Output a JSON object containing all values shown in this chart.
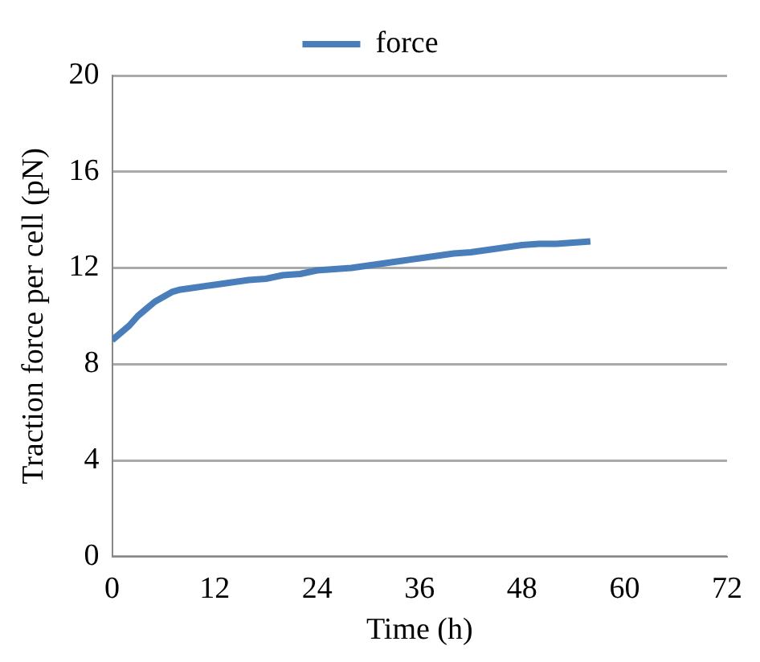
{
  "chart_data": {
    "type": "line",
    "xlabel": "Time (h)",
    "ylabel": "Traction force per cell (pN)",
    "x": [
      0,
      1,
      2,
      3,
      4,
      5,
      6,
      7,
      8,
      10,
      12,
      14,
      16,
      18,
      20,
      22,
      24,
      26,
      28,
      30,
      32,
      34,
      36,
      38,
      40,
      42,
      44,
      46,
      48,
      50,
      52,
      54,
      56
    ],
    "series": [
      {
        "name": "force",
        "color": "#4a7ebb",
        "values": [
          9.0,
          9.3,
          9.6,
          10.0,
          10.3,
          10.6,
          10.8,
          11.0,
          11.1,
          11.2,
          11.3,
          11.4,
          11.5,
          11.55,
          11.7,
          11.75,
          11.9,
          11.95,
          12.0,
          12.1,
          12.2,
          12.3,
          12.4,
          12.5,
          12.6,
          12.65,
          12.75,
          12.85,
          12.95,
          13.0,
          13.0,
          13.05,
          13.1
        ]
      }
    ],
    "xlim": [
      0,
      72
    ],
    "xticks": [
      0,
      12,
      24,
      36,
      48,
      60,
      72
    ],
    "ylim": [
      0,
      20
    ],
    "yticks": [
      0,
      4,
      8,
      12,
      16,
      20
    ],
    "grid": "y",
    "legend": "top",
    "marker": "none",
    "line_style": "solid"
  }
}
